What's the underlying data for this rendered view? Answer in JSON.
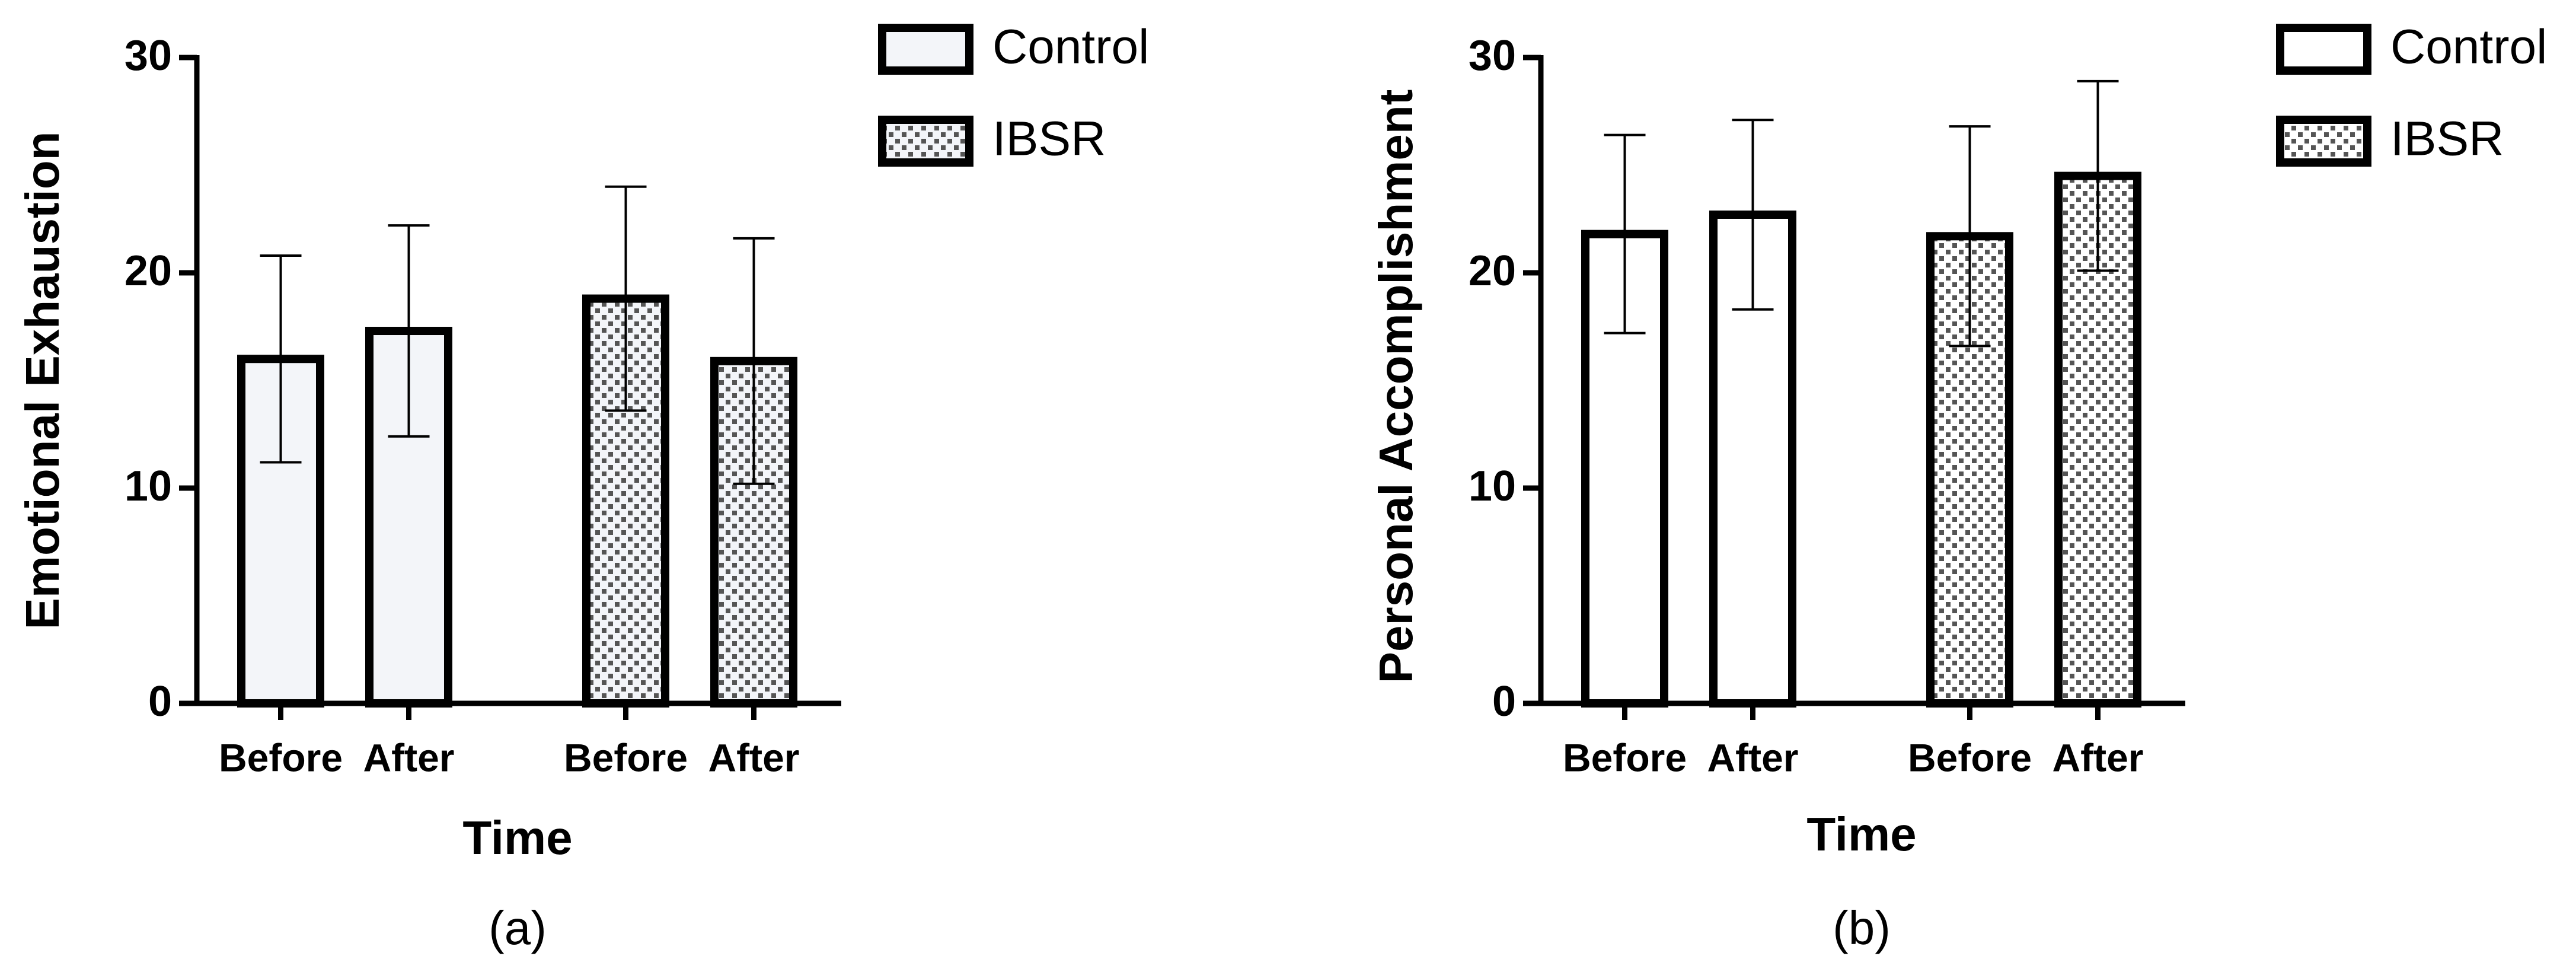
{
  "chart_data": [
    {
      "type": "bar",
      "ylabel": "Emotional Exhaustion",
      "xlabel": "Time",
      "caption": "(a)",
      "categories": [
        "Before",
        "After"
      ],
      "series": [
        {
          "name": "Control",
          "color": "#f3f5f9",
          "pattern": "none",
          "values": [
            16,
            17.3
          ],
          "errors": [
            4.8,
            4.9
          ]
        },
        {
          "name": "IBSR",
          "color": "#f3f5f9",
          "pattern": "dots",
          "values": [
            18.8,
            15.9
          ],
          "errors": [
            5.2,
            5.7
          ]
        }
      ],
      "ylim": [
        0,
        30
      ],
      "yticks": [
        0,
        10,
        20,
        30
      ]
    },
    {
      "type": "bar",
      "ylabel": "Personal Accomplishment",
      "xlabel": "Time",
      "caption": "(b)",
      "categories": [
        "Before",
        "After"
      ],
      "series": [
        {
          "name": "Control",
          "color": "#ffffff",
          "pattern": "none",
          "values": [
            21.8,
            22.7
          ],
          "errors": [
            4.6,
            4.4
          ]
        },
        {
          "name": "IBSR",
          "color": "#ffffff",
          "pattern": "dots",
          "values": [
            21.7,
            24.5
          ],
          "errors": [
            5.1,
            4.4
          ]
        }
      ],
      "ylim": [
        0,
        30
      ],
      "yticks": [
        0,
        10,
        20,
        30
      ]
    }
  ]
}
